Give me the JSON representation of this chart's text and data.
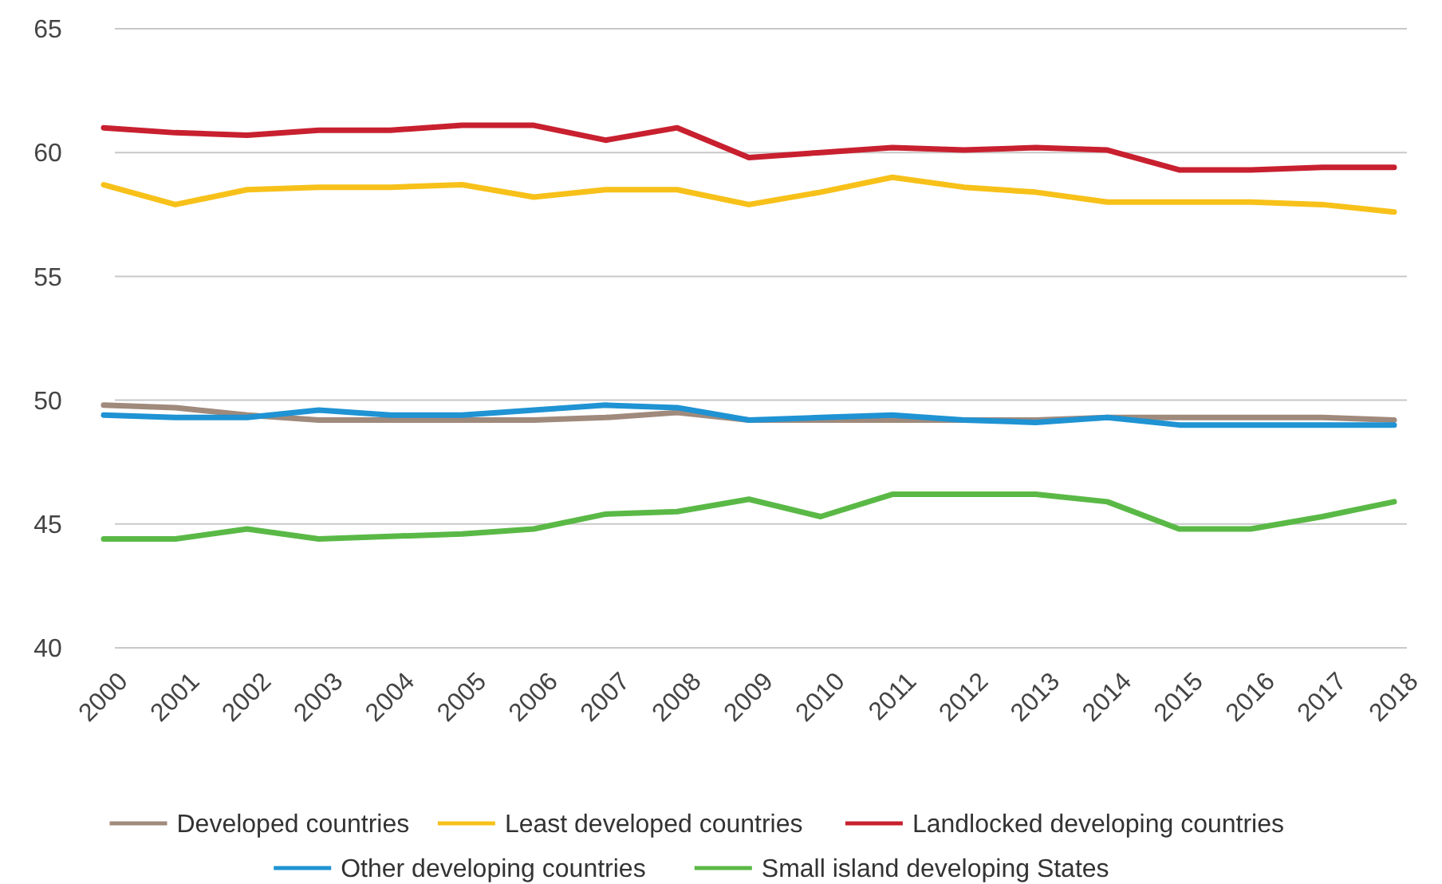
{
  "chart_data": {
    "type": "line",
    "categories": [
      "2000",
      "2001",
      "2002",
      "2003",
      "2004",
      "2005",
      "2006",
      "2007",
      "2008",
      "2009",
      "2010",
      "2011",
      "2012",
      "2013",
      "2014",
      "2015",
      "2016",
      "2017",
      "2018"
    ],
    "ylim": [
      40,
      65
    ],
    "yticks": [
      40,
      45,
      50,
      55,
      60,
      65
    ],
    "grid": "y",
    "legend": "bottom",
    "marker": "none",
    "line_style": "solid",
    "series": [
      {
        "name": "Developed countries",
        "color": "#a08a7c",
        "values": [
          49.8,
          49.7,
          49.4,
          49.2,
          49.2,
          49.2,
          49.2,
          49.3,
          49.5,
          49.2,
          49.2,
          49.2,
          49.2,
          49.2,
          49.3,
          49.3,
          49.3,
          49.3,
          49.2
        ]
      },
      {
        "name": "Least developed countries",
        "color": "#f7c11a",
        "values": [
          58.7,
          57.9,
          58.5,
          58.6,
          58.6,
          58.7,
          58.2,
          58.5,
          58.5,
          57.9,
          58.4,
          59.0,
          58.6,
          58.4,
          58.0,
          58.0,
          58.0,
          57.9,
          57.6
        ]
      },
      {
        "name": "Landlocked developing countries",
        "color": "#c8202f",
        "values": [
          61.0,
          60.8,
          60.7,
          60.9,
          60.9,
          61.1,
          61.1,
          60.5,
          61.0,
          59.8,
          60.0,
          60.2,
          60.1,
          60.2,
          60.1,
          59.3,
          59.3,
          59.4,
          59.4
        ]
      },
      {
        "name": "Other developing countries",
        "color": "#1f93d3",
        "values": [
          49.4,
          49.3,
          49.3,
          49.6,
          49.4,
          49.4,
          49.6,
          49.8,
          49.7,
          49.2,
          49.3,
          49.4,
          49.2,
          49.1,
          49.3,
          49.0,
          49.0,
          49.0,
          49.0
        ]
      },
      {
        "name": "Small island developing States",
        "color": "#5ab946",
        "values": [
          44.4,
          44.4,
          44.8,
          44.4,
          44.5,
          44.6,
          44.8,
          45.4,
          45.5,
          46.0,
          45.3,
          46.2,
          46.2,
          46.2,
          45.9,
          44.8,
          44.8,
          45.3,
          45.9
        ]
      }
    ]
  }
}
